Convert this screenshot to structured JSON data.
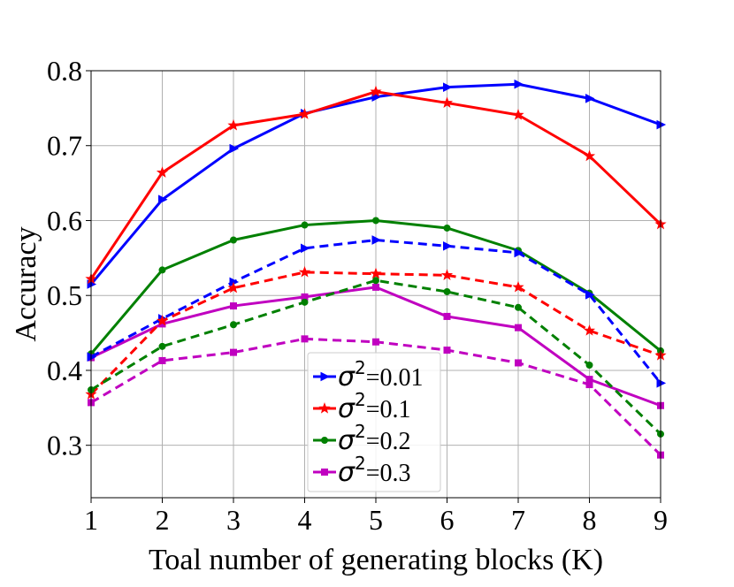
{
  "chart_data": {
    "type": "line",
    "title": "",
    "xlabel": "Toal number of generating blocks (K)",
    "ylabel": "Accuracy",
    "x": [
      1,
      2,
      3,
      4,
      5,
      6,
      7,
      8,
      9
    ],
    "xlim": [
      1,
      9
    ],
    "ylim": [
      0.23,
      0.8
    ],
    "xticks": [
      "1",
      "2",
      "3",
      "4",
      "5",
      "6",
      "7",
      "8",
      "9"
    ],
    "yticks": [
      "0.3",
      "0.4",
      "0.5",
      "0.6",
      "0.7",
      "0.8"
    ],
    "ytick_values": [
      0.3,
      0.4,
      0.5,
      0.6,
      0.7,
      0.8
    ],
    "grid": true,
    "legend_position": "lower-center",
    "legend": [
      {
        "sigma": "σ",
        "sup": "2",
        "text": "=0.01",
        "color": "#0000ff",
        "marker": "triangle-right"
      },
      {
        "sigma": "σ",
        "sup": "2",
        "text": "=0.1",
        "color": "#ff0000",
        "marker": "star"
      },
      {
        "sigma": "σ",
        "sup": "2",
        "text": "=0.2",
        "color": "#008000",
        "marker": "circle"
      },
      {
        "sigma": "σ",
        "sup": "2",
        "text": "=0.3",
        "color": "#c000c0",
        "marker": "square"
      }
    ],
    "series": [
      {
        "name": "σ²=0.01 solid",
        "color": "#0000ff",
        "style": "solid",
        "marker": "triangle-right",
        "values": [
          0.515,
          0.628,
          0.696,
          0.743,
          0.765,
          0.778,
          0.782,
          0.763,
          0.728
        ]
      },
      {
        "name": "σ²=0.1 solid",
        "color": "#ff0000",
        "style": "solid",
        "marker": "star",
        "values": [
          0.522,
          0.664,
          0.727,
          0.742,
          0.772,
          0.757,
          0.741,
          0.686,
          0.595
        ]
      },
      {
        "name": "σ²=0.2 solid",
        "color": "#008000",
        "style": "solid",
        "marker": "circle",
        "values": [
          0.422,
          0.534,
          0.574,
          0.594,
          0.6,
          0.59,
          0.56,
          0.503,
          0.426
        ]
      },
      {
        "name": "σ²=0.3 solid",
        "color": "#c000c0",
        "style": "solid",
        "marker": "square",
        "values": [
          0.417,
          0.462,
          0.486,
          0.498,
          0.511,
          0.472,
          0.457,
          0.388,
          0.353
        ]
      },
      {
        "name": "σ²=0.01 dashed",
        "color": "#0000ff",
        "style": "dashed",
        "marker": "triangle-right",
        "values": [
          0.418,
          0.469,
          0.518,
          0.563,
          0.574,
          0.566,
          0.557,
          0.501,
          0.383
        ]
      },
      {
        "name": "σ²=0.1 dashed",
        "color": "#ff0000",
        "style": "dashed",
        "marker": "star",
        "values": [
          0.368,
          0.466,
          0.51,
          0.531,
          0.529,
          0.527,
          0.511,
          0.453,
          0.42
        ]
      },
      {
        "name": "σ²=0.2 dashed",
        "color": "#008000",
        "style": "dashed",
        "marker": "circle",
        "values": [
          0.374,
          0.432,
          0.461,
          0.491,
          0.52,
          0.505,
          0.484,
          0.407,
          0.315
        ]
      },
      {
        "name": "σ²=0.3 dashed",
        "color": "#c000c0",
        "style": "dashed",
        "marker": "square",
        "values": [
          0.357,
          0.413,
          0.424,
          0.442,
          0.438,
          0.427,
          0.41,
          0.381,
          0.287
        ]
      }
    ]
  }
}
